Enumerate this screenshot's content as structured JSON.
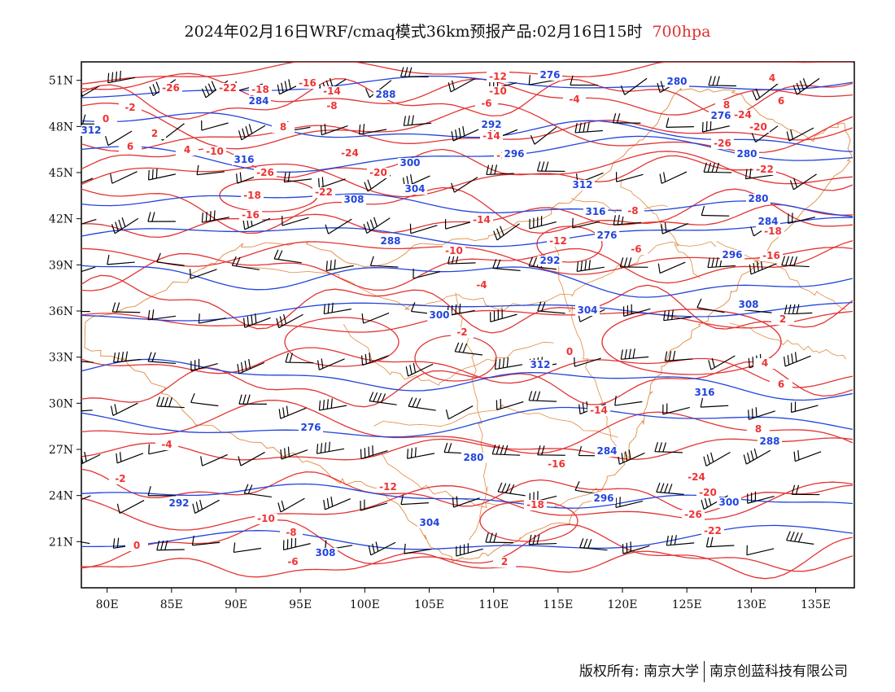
{
  "header": {
    "title": "2024年02月16日WRF/cmaq模式36km预报产品:02月16日15时",
    "level": "700hpa"
  },
  "map": {
    "lon_range": [
      78,
      138
    ],
    "lat_range": [
      18,
      52.2
    ],
    "x_ticks": [
      "80E",
      "85E",
      "90E",
      "95E",
      "100E",
      "105E",
      "110E",
      "115E",
      "120E",
      "125E",
      "130E",
      "135E"
    ],
    "y_ticks": [
      "51N",
      "48N",
      "45N",
      "42N",
      "39N",
      "36N",
      "33N",
      "30N",
      "27N",
      "24N",
      "21N"
    ],
    "colors": {
      "temperature": "#e33333",
      "height": "#2244dd",
      "border": "#e08a3c",
      "wind": "#000000"
    },
    "temperature_labels": [
      "-26",
      "-22",
      "-18",
      "-16",
      "-14",
      "-12",
      "-10",
      "-8",
      "-6",
      "-4",
      "-2",
      "0",
      "2",
      "4",
      "6",
      "8",
      "-24",
      "-20"
    ],
    "height_labels": [
      "276",
      "280",
      "284",
      "288",
      "292",
      "296",
      "300",
      "304",
      "308",
      "312",
      "316"
    ]
  },
  "footer": {
    "copyright": "版权所有: 南京大学",
    "company": "南京创蓝科技有限公司"
  }
}
